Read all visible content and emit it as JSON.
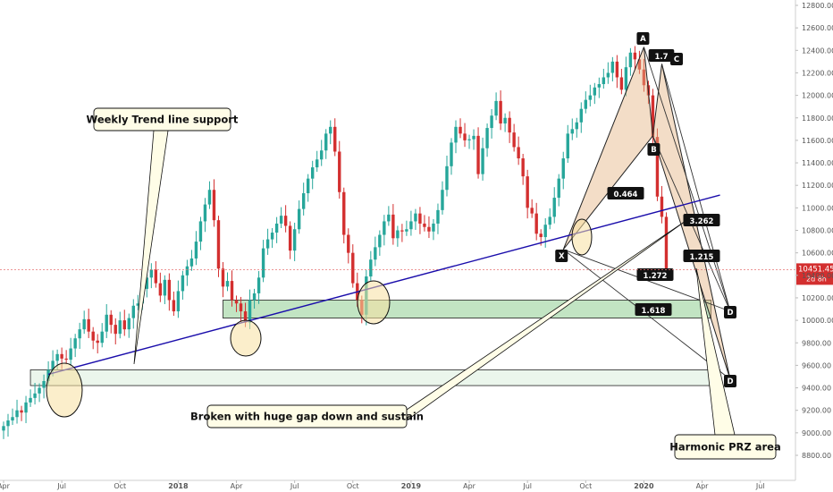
{
  "chart_data": {
    "type": "candlestick",
    "y_ticks": [
      8800,
      9000,
      9200,
      9400,
      9600,
      9800,
      10000,
      10200,
      10400,
      10600,
      10800,
      11000,
      11200,
      11400,
      11600,
      11800,
      12000,
      12200,
      12400,
      12600,
      12800
    ],
    "y_tick_labels": [
      "8800.00",
      "9000.00",
      "9200.00",
      "9400.00",
      "9600.00",
      "9800.00",
      "10000.00",
      "10200.00",
      "10400.00",
      "10600.00",
      "10800.00",
      "11000.00",
      "11200.00",
      "11400.00",
      "11600.00",
      "11800.00",
      "12000.00",
      "12200.00",
      "12400.00",
      "12600.00",
      "12800.00"
    ],
    "ylim": [
      8680,
      12890
    ],
    "x_labels": [
      {
        "label": "Apr",
        "i": 0
      },
      {
        "label": "Jul",
        "i": 13
      },
      {
        "label": "Oct",
        "i": 26
      },
      {
        "label": "2018",
        "i": 39
      },
      {
        "label": "Apr",
        "i": 52
      },
      {
        "label": "Jul",
        "i": 65
      },
      {
        "label": "Oct",
        "i": 78
      },
      {
        "label": "2019",
        "i": 91
      },
      {
        "label": "Apr",
        "i": 104
      },
      {
        "label": "Jul",
        "i": 117
      },
      {
        "label": "Oct",
        "i": 130
      },
      {
        "label": "2020",
        "i": 143
      },
      {
        "label": "Apr",
        "i": 156
      },
      {
        "label": "Jul",
        "i": 169
      }
    ],
    "closes": [
      9060,
      9110,
      9140,
      9200,
      9180,
      9270,
      9310,
      9350,
      9400,
      9460,
      9560,
      9640,
      9700,
      9660,
      9650,
      9750,
      9840,
      9920,
      10010,
      9900,
      9820,
      9800,
      9900,
      10050,
      9960,
      9880,
      10000,
      9920,
      10020,
      10130,
      10150,
      10280,
      10380,
      10450,
      10330,
      10220,
      10360,
      10180,
      10080,
      10260,
      10400,
      10480,
      10550,
      10700,
      10880,
      11030,
      11160,
      10890,
      10460,
      10300,
      10350,
      10180,
      10150,
      10080,
      9980,
      10180,
      10240,
      10380,
      10640,
      10720,
      10780,
      10860,
      10930,
      10840,
      10620,
      10810,
      10990,
      11130,
      11260,
      11360,
      11430,
      11510,
      11660,
      11720,
      11500,
      11140,
      10760,
      10600,
      10330,
      10180,
      10050,
      10390,
      10540,
      10650,
      10760,
      10880,
      10940,
      10730,
      10800,
      10790,
      10810,
      10880,
      10950,
      10860,
      10830,
      10790,
      10860,
      10980,
      11160,
      11370,
      11580,
      11720,
      11660,
      11600,
      11610,
      11640,
      11300,
      11530,
      11710,
      11820,
      11950,
      11750,
      11800,
      11670,
      11540,
      11440,
      11280,
      11000,
      10950,
      10770,
      10740,
      10850,
      10920,
      11090,
      11260,
      11440,
      11660,
      11700,
      11760,
      11880,
      11960,
      12000,
      12070,
      12100,
      12160,
      12200,
      12300,
      12160,
      12050,
      12250,
      12380,
      12320,
      12230,
      12090,
      12000,
      11630,
      11100,
      10920,
      10451
    ],
    "last_price_label": "10451.45",
    "countdown_label": "2d 8h",
    "colors": {
      "up": "#26a69a",
      "down": "#d32f2f",
      "trendline": "#1a0dab"
    },
    "trendline": {
      "from": {
        "i": 10,
        "price": 9520
      },
      "to": {
        "i": 155,
        "price": 11050
      }
    },
    "zones": [
      {
        "from_i": 49,
        "to_i": 158,
        "top": 10180,
        "bottom": 10020,
        "label": "D"
      },
      {
        "from_i": 6,
        "to_i": 160,
        "top": 9560,
        "bottom": 9420,
        "label": "D"
      }
    ],
    "harmonic_points": [
      {
        "label": "X",
        "i": 125,
        "price": 10630
      },
      {
        "label": "A",
        "i": 143,
        "price": 12430
      },
      {
        "label": "B",
        "i": 145,
        "price": 11640
      },
      {
        "label": "C",
        "i": 147,
        "price": 12280
      }
    ],
    "ratios": [
      "0.464",
      "1.272",
      "1.618",
      "1.215",
      "3.262",
      "1.7"
    ],
    "annotations": {
      "trend_support": "Weekly Trend line support",
      "gap_down": "Broken with huge gap down and sustain",
      "prz": "Harmonic PRZ area"
    }
  }
}
